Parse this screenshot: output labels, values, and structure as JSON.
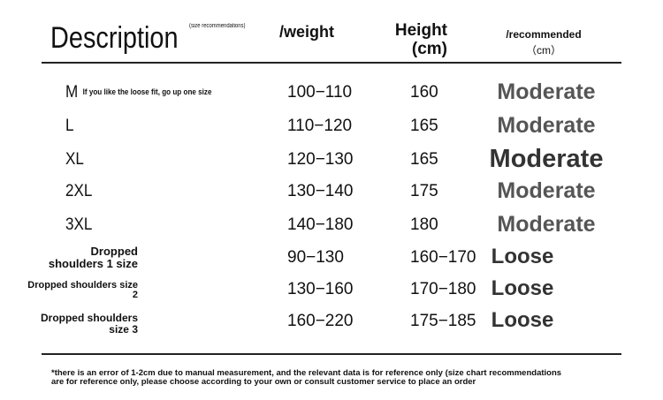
{
  "header": {
    "description": "Description",
    "size_note": "(size recommendations)",
    "weight": "/weight",
    "height_line1": "Height",
    "height_line2": "(cm)",
    "recommended": "/recommended",
    "recommended_unit": "（cm）"
  },
  "rows": [
    {
      "size": "M",
      "note": "If you like the loose fit, go up one size",
      "weight": "100−110",
      "height": "160",
      "fit": "Moderate"
    },
    {
      "size": "L",
      "weight": "110−120",
      "height": "165",
      "fit": "Moderate"
    },
    {
      "size": "XL",
      "weight": "120−130",
      "height": "165",
      "fit": "Moderate"
    },
    {
      "size": "2XL",
      "weight": "130−140",
      "height": "175",
      "fit": "Moderate"
    },
    {
      "size": "3XL",
      "weight": "140−180",
      "height": "180",
      "fit": "Moderate"
    },
    {
      "size_line1": "Dropped",
      "size_line2": "shoulders 1 size",
      "weight": "90−130",
      "height": "160−170",
      "fit": "Loose"
    },
    {
      "size_line1": "Dropped shoulders size",
      "size_line2": "2",
      "weight": "130−160",
      "height": "170−180",
      "fit": "Loose"
    },
    {
      "size_line1": "Dropped shoulders",
      "size_line2": "size 3",
      "weight": "160−220",
      "height": "175−185",
      "fit": "Loose"
    }
  ],
  "footnote_line1": "*there is an error of 1-2cm due to manual measurement, and the relevant data is for reference only (size chart recommendations",
  "footnote_line2": "are for reference only, please choose according to your own or consult customer service to place an order"
}
